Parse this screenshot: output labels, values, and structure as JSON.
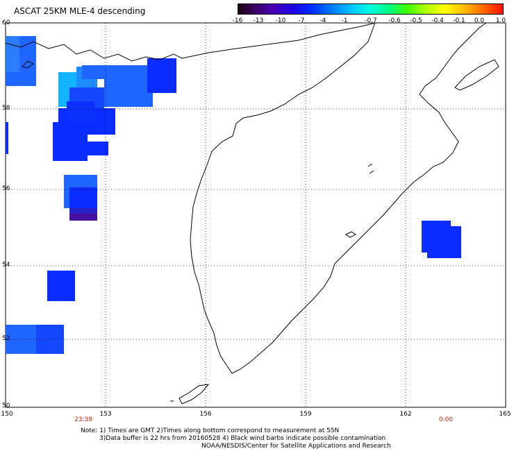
{
  "title": "ASCAT 25KM MLE-4 descending",
  "colorbar": {
    "labels": [
      "-16",
      "-13",
      "-10",
      "-7",
      "-4",
      "-1",
      "-0.7",
      "-0.6",
      "-0.5",
      "-0.4",
      "-0.1",
      "0.0",
      "1.0"
    ]
  },
  "latitude_labels": [
    "60",
    "58",
    "56",
    "54",
    "52",
    "50"
  ],
  "longitude_labels": [
    "150",
    "153",
    "156",
    "159",
    "162",
    "165"
  ],
  "time_labels": [
    "23:39",
    "0:00"
  ],
  "notes": {
    "line1": "Note: 1) Times are GMT 2)Times along bottom correspond to measurement at 55N",
    "line2": "3)Data buffer is 22 hrs from 20160528 4) Black wind barbs indicate possible contamination",
    "line3": "NOAA/NESDIS/Center for Satellite Applications and Research"
  },
  "colors": {
    "blue": "#0a2cff",
    "light_blue": "#1e66ff",
    "cyan": "#12b4ff",
    "purple": "#4b0fa0"
  }
}
